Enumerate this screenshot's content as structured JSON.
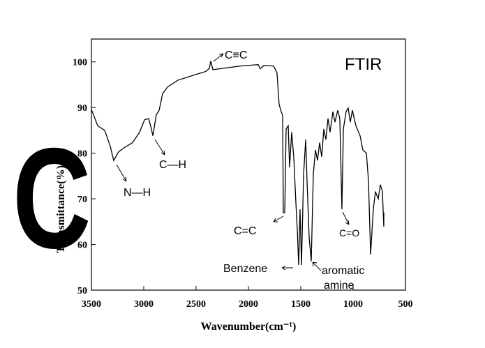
{
  "chart_data": {
    "type": "line",
    "xlabel": "Wavenumber(cm⁻¹)",
    "ylabel": "Transmittance(%)",
    "overlay_letter": "C",
    "annotations": [
      "FTIR",
      "C≡C",
      "C—H",
      "N—H",
      "C=C",
      "Benzene",
      "aromatic",
      "amine",
      "C=O"
    ],
    "xlim": [
      3500,
      500
    ],
    "ylim": [
      50,
      105
    ],
    "xticks": [
      3500,
      3000,
      2500,
      2000,
      1500,
      1000,
      500
    ],
    "yticks": [
      50,
      60,
      70,
      80,
      90,
      100
    ],
    "series": [
      {
        "name": "FTIR",
        "color": "#000000",
        "x": [
          3500,
          3440,
          3373,
          3320,
          3287,
          3240,
          3187,
          3107,
          3040,
          2993,
          2953,
          2927,
          2913,
          2880,
          2853,
          2820,
          2773,
          2673,
          2507,
          2407,
          2373,
          2360,
          2340,
          2240,
          2073,
          1907,
          1887,
          1853,
          1760,
          1727,
          1707,
          1687,
          1673,
          1667,
          1653,
          1640,
          1620,
          1607,
          1587,
          1567,
          1547,
          1533,
          1520,
          1507,
          1493,
          1473,
          1453,
          1440,
          1420,
          1400,
          1380,
          1360,
          1340,
          1320,
          1300,
          1280,
          1260,
          1240,
          1220,
          1193,
          1173,
          1147,
          1127,
          1107,
          1093,
          1067,
          1047,
          1027,
          1007,
          973,
          933,
          907,
          873,
          853,
          833,
          807,
          787,
          760,
          740,
          720,
          707,
          706
        ],
        "values": [
          89.6,
          86,
          85,
          81.5,
          78.4,
          80.3,
          81.2,
          82.3,
          84.6,
          87.3,
          87.6,
          85.3,
          83.8,
          88.4,
          89.4,
          93,
          94.5,
          96,
          97.2,
          97.9,
          98.6,
          100.2,
          98.3,
          98.6,
          99.1,
          99.4,
          98.5,
          99.2,
          99.1,
          97.6,
          90.7,
          89.1,
          88.3,
          67,
          67,
          85.3,
          86,
          76.9,
          84.6,
          79.2,
          69.3,
          63.1,
          55.5,
          67.7,
          55.5,
          75.4,
          83,
          73.9,
          61.6,
          56.3,
          75.4,
          80.7,
          78.4,
          82.3,
          79.2,
          85.3,
          83,
          87.6,
          84.6,
          89.1,
          86.8,
          89.4,
          87.6,
          67.7,
          85.3,
          89.1,
          89.9,
          86.8,
          89.4,
          86,
          83.8,
          80.7,
          80,
          73.9,
          57.8,
          67.7,
          71.6,
          70,
          73.1,
          71.6,
          63.9,
          67
        ]
      }
    ]
  }
}
